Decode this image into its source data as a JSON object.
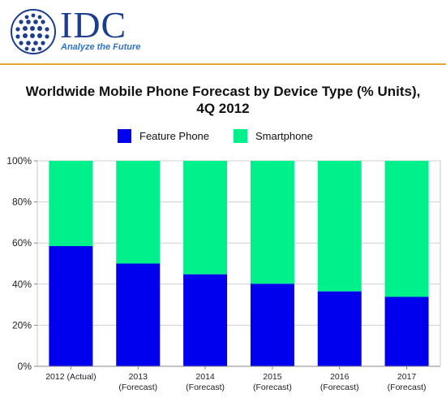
{
  "logo": {
    "wordmark": "IDC",
    "tagline": "Analyze the Future"
  },
  "chart_data": {
    "type": "bar",
    "stacked": true,
    "title_line1": "Worldwide Mobile Phone Forecast by Device Type (% Units),",
    "title_line2": "4Q 2012",
    "categories": [
      [
        "2012 (Actual)"
      ],
      [
        "2013",
        "(Forecast)"
      ],
      [
        "2014",
        "(Forecast)"
      ],
      [
        "2015",
        "(Forecast)"
      ],
      [
        "2016",
        "(Forecast)"
      ],
      [
        "2017",
        "(Forecast)"
      ]
    ],
    "series": [
      {
        "name": "Feature Phone",
        "color": "#0000ee",
        "values": [
          58.5,
          50,
          44.8,
          40.2,
          36.5,
          33.8
        ]
      },
      {
        "name": "Smartphone",
        "color": "#00f08c",
        "values": [
          41.5,
          50,
          55.2,
          59.8,
          63.5,
          66.2
        ]
      }
    ],
    "ylim": [
      0,
      100
    ],
    "yticks": [
      "0%",
      "20%",
      "40%",
      "60%",
      "80%",
      "100%"
    ],
    "grid": true,
    "legend_position": "top"
  }
}
